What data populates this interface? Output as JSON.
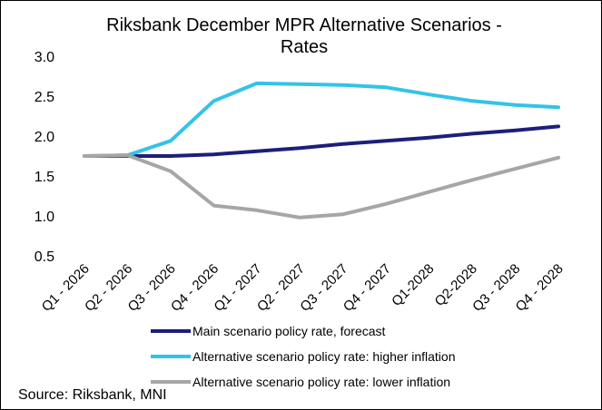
{
  "chart_data": {
    "type": "line",
    "title": "Riksbank December MPR Alternative Scenarios - Rates",
    "title_lines": [
      "Riksbank December MPR Alternative Scenarios -",
      "Rates"
    ],
    "categories": [
      "Q1 - 2026",
      "Q2 - 2026",
      "Q3 - 2026",
      "Q4 - 2026",
      "Q1 - 2027",
      "Q2 - 2027",
      "Q3 - 2027",
      "Q4 - 2027",
      "Q1-2028",
      "Q2-2028",
      "Q3 - 2028",
      "Q4 - 2028"
    ],
    "ylim": [
      0.5,
      3.0
    ],
    "yticks": [
      "3.0",
      "2.5",
      "2.0",
      "1.5",
      "1.0",
      "0.5"
    ],
    "grid": false,
    "legend_position": "bottom",
    "series": [
      {
        "name": "Main scenario policy rate, forecast",
        "color": "#1c1f7a",
        "values": [
          1.75,
          1.75,
          1.75,
          1.77,
          1.81,
          1.85,
          1.9,
          1.94,
          1.98,
          2.03,
          2.07,
          2.12
        ]
      },
      {
        "name": "Alternative scenario policy rate: higher inflation",
        "color": "#33c3e8",
        "values": [
          1.75,
          1.76,
          1.94,
          2.44,
          2.66,
          2.65,
          2.64,
          2.61,
          2.52,
          2.44,
          2.39,
          2.36
        ]
      },
      {
        "name": "Alternative scenario policy rate: lower inflation",
        "color": "#a6a6a6",
        "values": [
          1.75,
          1.76,
          1.56,
          1.13,
          1.07,
          0.98,
          1.02,
          1.15,
          1.3,
          1.45,
          1.59,
          1.73
        ]
      }
    ],
    "source": "Source: Riksbank, MNI"
  }
}
